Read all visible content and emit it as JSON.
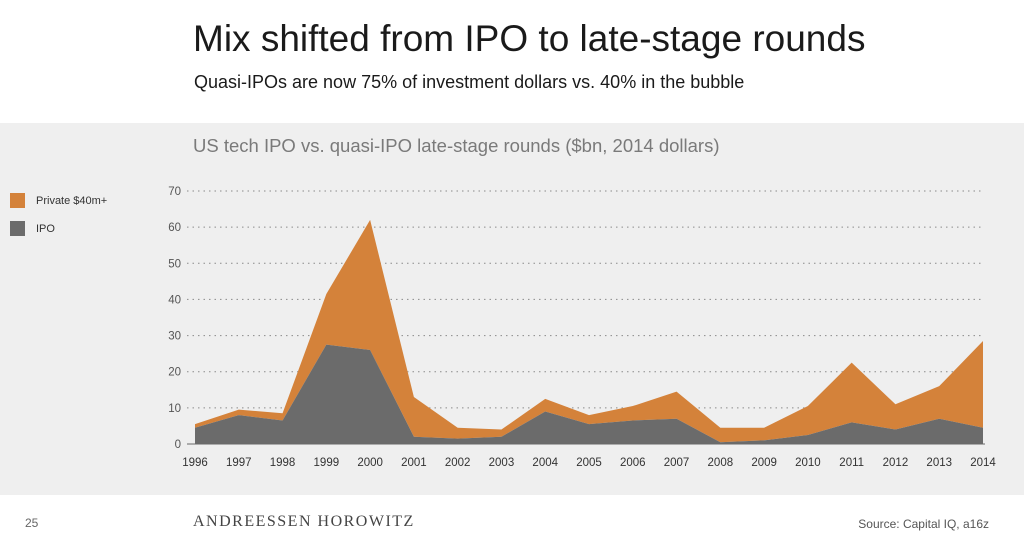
{
  "slide": {
    "title": "Mix shifted from IPO to late-stage rounds",
    "subtitle": "Quasi-IPOs are now 75% of investment dollars vs. 40% in the bubble",
    "page_number": "25",
    "brand": "ANDREESSEN HOROWITZ",
    "source": "Source: Capital IQ, a16z"
  },
  "chart_data": {
    "type": "area",
    "stacked": true,
    "title": "US tech IPO vs. quasi-IPO late-stage rounds ($bn, 2014 dollars)",
    "x": [
      "1996",
      "1997",
      "1998",
      "1999",
      "2000",
      "2001",
      "2002",
      "2003",
      "2004",
      "2005",
      "2006",
      "2007",
      "2008",
      "2009",
      "2010",
      "2011",
      "2012",
      "2013",
      "2014"
    ],
    "series": [
      {
        "name": "IPO",
        "color": "#6b6b6b",
        "values": [
          4.5,
          8,
          6.5,
          27.5,
          26,
          2,
          1.5,
          2,
          9,
          5.5,
          6.5,
          7,
          0.5,
          1,
          2.5,
          6,
          4,
          7,
          4.5
        ]
      },
      {
        "name": "Private $40m+",
        "color": "#d4823a",
        "values": [
          1,
          1.5,
          2,
          14,
          36,
          11,
          3,
          2,
          3.5,
          2.5,
          4,
          7.5,
          4,
          3.5,
          8,
          16.5,
          7,
          9,
          24
        ]
      }
    ],
    "legend_order": [
      "Private $40m+",
      "IPO"
    ],
    "yticks": [
      0,
      10,
      20,
      30,
      40,
      50,
      60,
      70
    ],
    "ylim": [
      0,
      70
    ],
    "xlabel": "",
    "ylabel": "",
    "grid": "horizontal dotted",
    "legend_position": "left"
  }
}
